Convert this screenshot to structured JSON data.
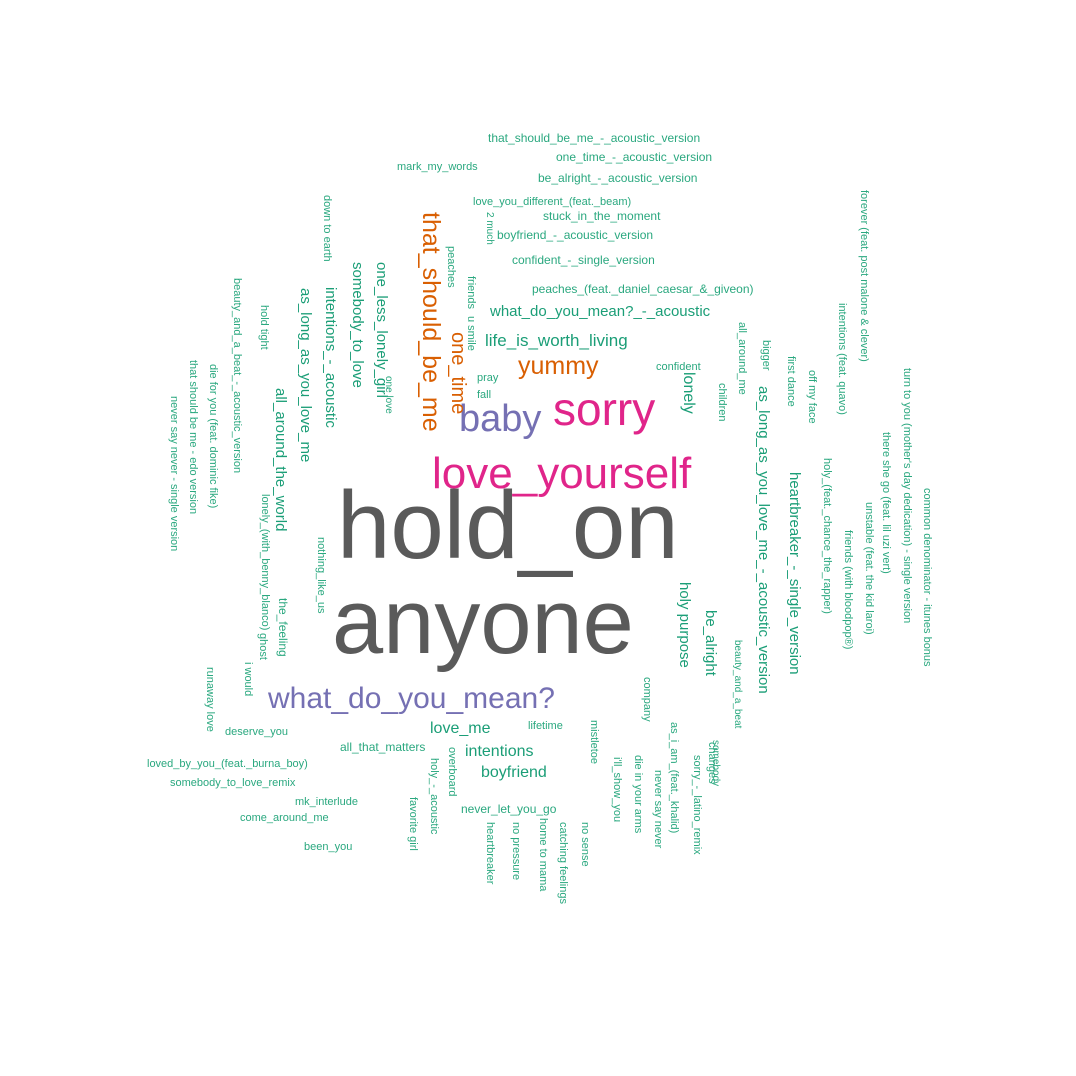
{
  "colors": {
    "gray": "#5a5a5a",
    "pink": "#e0258a",
    "purple": "#7570b3",
    "orange": "#d95f02",
    "green": "#1b9e77",
    "teal": "#2aa87f"
  },
  "words": [
    {
      "text": "hold_on",
      "color": "gray"
    },
    {
      "text": "anyone",
      "color": "gray"
    },
    {
      "text": "love_yourself",
      "color": "pink"
    },
    {
      "text": "sorry",
      "color": "pink"
    },
    {
      "text": "baby",
      "color": "purple"
    },
    {
      "text": "what_do_you_mean?",
      "color": "purple"
    },
    {
      "text": "yummy",
      "color": "orange"
    },
    {
      "text": "that_should_be_me",
      "color": "orange"
    },
    {
      "text": "one_time",
      "color": "orange"
    },
    {
      "text": "life_is_worth_living",
      "color": "green"
    },
    {
      "text": "what_do_you_mean?_-_acoustic",
      "color": "green"
    },
    {
      "text": "peaches_(feat._daniel_caesar_&_giveon)",
      "color": "teal"
    },
    {
      "text": "confident_-_single_version",
      "color": "teal"
    },
    {
      "text": "boyfriend_-_acoustic_version",
      "color": "teal"
    },
    {
      "text": "stuck_in_the_moment",
      "color": "teal"
    },
    {
      "text": "love_you_different_(feat._beam)",
      "color": "teal"
    },
    {
      "text": "be_alright_-_acoustic_version",
      "color": "teal"
    },
    {
      "text": "one_time_-_acoustic_version",
      "color": "teal"
    },
    {
      "text": "that_should_be_me_-_acoustic_version",
      "color": "teal"
    },
    {
      "text": "mark_my_words",
      "color": "teal"
    },
    {
      "text": "love_me",
      "color": "green"
    },
    {
      "text": "intentions",
      "color": "green"
    },
    {
      "text": "boyfriend",
      "color": "green"
    },
    {
      "text": "deserve_you",
      "color": "teal"
    },
    {
      "text": "all_that_matters",
      "color": "teal"
    },
    {
      "text": "lifetime",
      "color": "teal"
    },
    {
      "text": "loved_by_you_(feat._burna_boy)",
      "color": "teal"
    },
    {
      "text": "somebody_to_love_remix",
      "color": "teal"
    },
    {
      "text": "mk_interlude",
      "color": "teal"
    },
    {
      "text": "come_around_me",
      "color": "teal"
    },
    {
      "text": "been_you",
      "color": "teal"
    },
    {
      "text": "never_let_you_go",
      "color": "teal"
    },
    {
      "text": "confident",
      "color": "teal"
    },
    {
      "text": "pray",
      "color": "teal"
    },
    {
      "text": "fall",
      "color": "teal"
    },
    {
      "text": "one_less_lonely_girl",
      "color": "green"
    },
    {
      "text": "somebody_to_love",
      "color": "green"
    },
    {
      "text": "intentions_-_acoustic",
      "color": "green"
    },
    {
      "text": "as_long_as_you_love_me",
      "color": "green"
    },
    {
      "text": "all_around_the_world",
      "color": "green"
    },
    {
      "text": "the_feeling",
      "color": "teal"
    },
    {
      "text": "nothing_like_us",
      "color": "teal"
    },
    {
      "text": "lonely_(with_benny_blanco)",
      "color": "teal"
    },
    {
      "text": "down to earth",
      "color": "teal"
    },
    {
      "text": "2 much",
      "color": "teal"
    },
    {
      "text": "peaches",
      "color": "teal"
    },
    {
      "text": "friends",
      "color": "teal"
    },
    {
      "text": "u smile",
      "color": "teal"
    },
    {
      "text": "one love",
      "color": "teal"
    },
    {
      "text": "beauty_and_a_beat_-_acoustic_version",
      "color": "teal"
    },
    {
      "text": "die for you (feat. dominic fike)",
      "color": "teal"
    },
    {
      "text": "that should be me - edo version",
      "color": "teal"
    },
    {
      "text": "never say never - single version",
      "color": "teal"
    },
    {
      "text": "hold tight",
      "color": "teal"
    },
    {
      "text": "ghost",
      "color": "teal"
    },
    {
      "text": "i would",
      "color": "teal"
    },
    {
      "text": "runaway love",
      "color": "teal"
    },
    {
      "text": "lonely",
      "color": "green"
    },
    {
      "text": "as_long_as_you_love_me_-_acoustic_version",
      "color": "green"
    },
    {
      "text": "heartbreaker_-_single_version",
      "color": "green"
    },
    {
      "text": "holy purpose",
      "color": "green"
    },
    {
      "text": "be_alright",
      "color": "green"
    },
    {
      "text": "beauty_and_a_beat",
      "color": "teal"
    },
    {
      "text": "somebody",
      "color": "teal"
    },
    {
      "text": "all_around_me",
      "color": "teal"
    },
    {
      "text": "children",
      "color": "teal"
    },
    {
      "text": "bigger",
      "color": "teal"
    },
    {
      "text": "first dance",
      "color": "teal"
    },
    {
      "text": "off my face",
      "color": "teal"
    },
    {
      "text": "holy_(feat._chance_the_rapper)",
      "color": "teal"
    },
    {
      "text": "intentions (feat. quavo)",
      "color": "teal"
    },
    {
      "text": "forever (feat. post malone & clever)",
      "color": "teal"
    },
    {
      "text": "unstable (feat. the kid laroi)",
      "color": "teal"
    },
    {
      "text": "friends (with bloodpop®)",
      "color": "teal"
    },
    {
      "text": "there she go (feat. lil uzi vert)",
      "color": "teal"
    },
    {
      "text": "turn to you (mother's day dedication) - single version",
      "color": "teal"
    },
    {
      "text": "common denominator - itunes bonus",
      "color": "teal"
    },
    {
      "text": "company",
      "color": "teal"
    },
    {
      "text": "as_i_am_(feat._khalid)",
      "color": "teal"
    },
    {
      "text": "changes",
      "color": "teal"
    },
    {
      "text": "sorry_-_latino_remix",
      "color": "teal"
    },
    {
      "text": "never say never",
      "color": "teal"
    },
    {
      "text": "die in your arms",
      "color": "teal"
    },
    {
      "text": "i'll_show_you",
      "color": "teal"
    },
    {
      "text": "mistletoe",
      "color": "teal"
    },
    {
      "text": "catching feelings",
      "color": "teal"
    },
    {
      "text": "home to mama",
      "color": "teal"
    },
    {
      "text": "no sense",
      "color": "teal"
    },
    {
      "text": "no pressure",
      "color": "teal"
    },
    {
      "text": "heartbreaker",
      "color": "teal"
    },
    {
      "text": "overboard",
      "color": "teal"
    },
    {
      "text": "holy_-_acoustic",
      "color": "teal"
    },
    {
      "text": "favorite girl",
      "color": "teal"
    }
  ]
}
